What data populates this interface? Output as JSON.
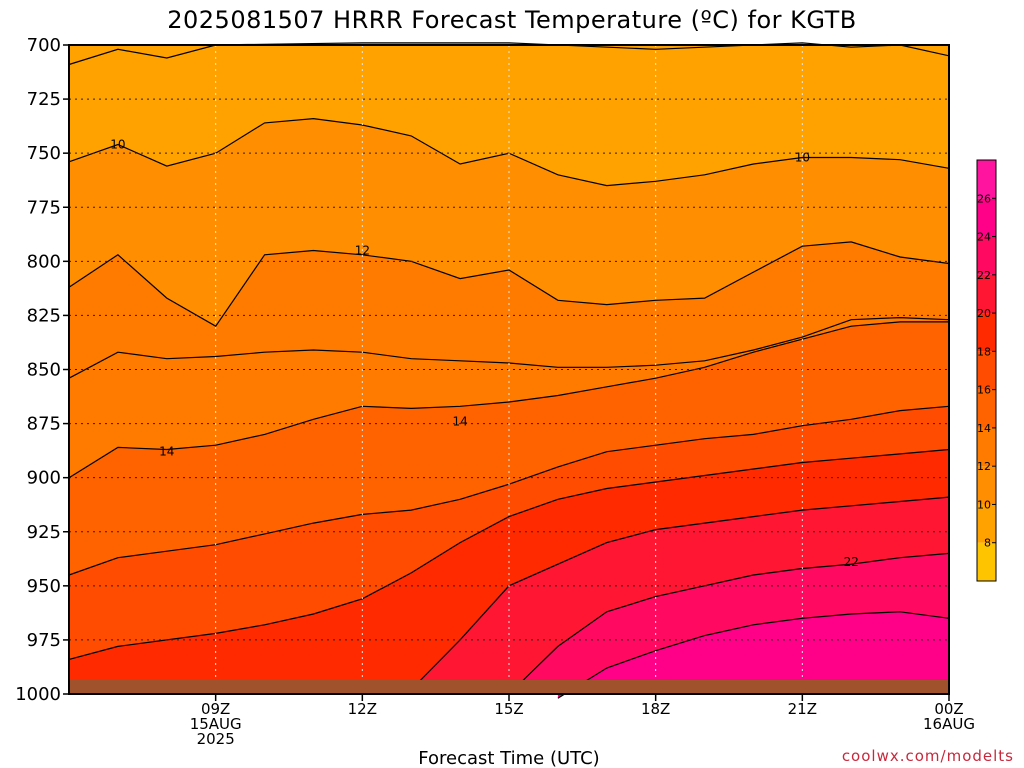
{
  "chart_data": {
    "type": "contour",
    "title": "2025081507 HRRR Forecast Temperature (ºC) for KGTB",
    "xlabel": "Forecast Time (UTC)",
    "y_axis": {
      "ticks": [
        "700",
        "725",
        "750",
        "775",
        "800",
        "825",
        "850",
        "875",
        "900",
        "925",
        "950",
        "975",
        "1000"
      ],
      "range": [
        700,
        1000
      ],
      "inverted": true
    },
    "x_axis": {
      "range_hours": [
        6,
        24
      ],
      "ticks": [
        {
          "hour": 9,
          "lines": [
            "09Z",
            "15AUG",
            "2025"
          ]
        },
        {
          "hour": 12,
          "lines": [
            "12Z"
          ]
        },
        {
          "hour": 15,
          "lines": [
            "15Z"
          ]
        },
        {
          "hour": 18,
          "lines": [
            "18Z"
          ]
        },
        {
          "hour": 21,
          "lines": [
            "21Z"
          ]
        },
        {
          "hour": 24,
          "lines": [
            "00Z",
            "16AUG"
          ]
        }
      ]
    },
    "colorbar": {
      "bins": [
        {
          "from": 6,
          "to": 8,
          "color": "#ffc400"
        },
        {
          "from": 8,
          "to": 10,
          "color": "#ffa200"
        },
        {
          "from": 10,
          "to": 12,
          "color": "#ff8f00"
        },
        {
          "from": 12,
          "to": 14,
          "color": "#ff7b00"
        },
        {
          "from": 14,
          "to": 16,
          "color": "#ff6300"
        },
        {
          "from": 16,
          "to": 18,
          "color": "#ff4c00"
        },
        {
          "from": 18,
          "to": 20,
          "color": "#ff2a00"
        },
        {
          "from": 20,
          "to": 22,
          "color": "#ff1632"
        },
        {
          "from": 22,
          "to": 24,
          "color": "#ff0a60"
        },
        {
          "from": 24,
          "to": 26,
          "color": "#ff0088"
        },
        {
          "from": 26,
          "to": 28,
          "color": "#ff14a0"
        }
      ],
      "tick_labels": [
        "8",
        "10",
        "12",
        "14",
        "16",
        "18",
        "20",
        "22",
        "24",
        "26"
      ]
    },
    "contour_labels": [
      {
        "text": "10",
        "hour": 7.0,
        "pressure": 746
      },
      {
        "text": "10",
        "hour": 21.0,
        "pressure": 752
      },
      {
        "text": "12",
        "hour": 12.0,
        "pressure": 795
      },
      {
        "text": "14",
        "hour": 14.0,
        "pressure": 874
      },
      {
        "text": "14",
        "hour": 8.0,
        "pressure": 888
      },
      {
        "text": "22",
        "hour": 22.0,
        "pressure": 939
      }
    ],
    "isotherms": [
      {
        "value": 8,
        "points": [
          [
            6,
            709
          ],
          [
            7,
            702
          ],
          [
            8,
            706
          ],
          [
            9,
            700
          ],
          [
            12,
            699
          ],
          [
            15,
            699
          ],
          [
            18,
            702
          ],
          [
            21,
            699
          ],
          [
            22,
            701
          ],
          [
            23,
            700
          ],
          [
            24,
            705
          ],
          [
            24,
            708
          ]
        ]
      },
      {
        "value": 10,
        "points": [
          [
            6,
            754
          ],
          [
            7,
            746
          ],
          [
            8,
            756
          ],
          [
            9,
            750
          ],
          [
            10,
            736
          ],
          [
            11,
            734
          ],
          [
            12,
            737
          ],
          [
            13,
            742
          ],
          [
            14,
            755
          ],
          [
            15,
            750
          ],
          [
            16,
            760
          ],
          [
            17,
            765
          ],
          [
            18,
            763
          ],
          [
            19,
            760
          ],
          [
            20,
            755
          ],
          [
            21,
            752
          ],
          [
            22,
            752
          ],
          [
            23,
            753
          ],
          [
            24,
            757
          ]
        ]
      },
      {
        "value": 12,
        "points": [
          [
            6,
            812
          ],
          [
            7,
            797
          ],
          [
            8,
            817
          ],
          [
            9,
            830
          ],
          [
            10,
            797
          ],
          [
            11,
            795
          ],
          [
            12,
            797
          ],
          [
            13,
            800
          ],
          [
            14,
            808
          ],
          [
            15,
            804
          ],
          [
            16,
            818
          ],
          [
            17,
            820
          ],
          [
            18,
            818
          ],
          [
            19,
            817
          ],
          [
            20,
            805
          ],
          [
            21,
            793
          ],
          [
            22,
            791
          ],
          [
            23,
            798
          ],
          [
            24,
            801
          ]
        ]
      },
      {
        "value": 13,
        "points": [
          [
            6,
            854
          ],
          [
            7,
            842
          ],
          [
            8,
            845
          ],
          [
            9,
            844
          ],
          [
            10,
            842
          ],
          [
            11,
            841
          ],
          [
            12,
            842
          ],
          [
            13,
            845
          ],
          [
            14,
            846
          ],
          [
            15,
            847
          ],
          [
            16,
            849
          ],
          [
            17,
            849
          ],
          [
            18,
            848
          ],
          [
            19,
            846
          ],
          [
            20,
            841
          ],
          [
            21,
            835
          ],
          [
            22,
            827
          ],
          [
            23,
            826
          ],
          [
            24,
            827
          ]
        ]
      },
      {
        "value": 14,
        "points": [
          [
            6,
            900
          ],
          [
            7,
            886
          ],
          [
            8,
            887
          ],
          [
            9,
            885
          ],
          [
            10,
            880
          ],
          [
            11,
            873
          ],
          [
            12,
            867
          ],
          [
            13,
            868
          ],
          [
            14,
            867
          ],
          [
            15,
            865
          ],
          [
            16,
            862
          ],
          [
            17,
            858
          ],
          [
            18,
            854
          ],
          [
            19,
            849
          ],
          [
            20,
            842
          ],
          [
            21,
            836
          ],
          [
            22,
            830
          ],
          [
            23,
            828
          ],
          [
            24,
            828
          ]
        ]
      },
      {
        "value": 16,
        "points": [
          [
            6,
            945
          ],
          [
            7,
            937
          ],
          [
            8,
            934
          ],
          [
            9,
            931
          ],
          [
            10,
            926
          ],
          [
            11,
            921
          ],
          [
            12,
            917
          ],
          [
            13,
            915
          ],
          [
            14,
            910
          ],
          [
            15,
            903
          ],
          [
            16,
            895
          ],
          [
            17,
            888
          ],
          [
            18,
            885
          ],
          [
            19,
            882
          ],
          [
            20,
            880
          ],
          [
            21,
            876
          ],
          [
            22,
            873
          ],
          [
            23,
            869
          ],
          [
            24,
            867
          ]
        ]
      },
      {
        "value": 18,
        "points": [
          [
            6,
            984
          ],
          [
            7,
            978
          ],
          [
            8,
            975
          ],
          [
            9,
            972
          ],
          [
            10,
            968
          ],
          [
            11,
            963
          ],
          [
            12,
            956
          ],
          [
            13,
            944
          ],
          [
            14,
            930
          ],
          [
            15,
            918
          ],
          [
            16,
            910
          ],
          [
            17,
            905
          ],
          [
            18,
            902
          ],
          [
            19,
            899
          ],
          [
            20,
            896
          ],
          [
            21,
            893
          ],
          [
            22,
            891
          ],
          [
            23,
            889
          ],
          [
            24,
            887
          ]
        ]
      },
      {
        "value": 20,
        "points": [
          [
            13,
            998
          ],
          [
            14,
            975
          ],
          [
            15,
            950
          ],
          [
            16,
            940
          ],
          [
            17,
            930
          ],
          [
            18,
            924
          ],
          [
            19,
            921
          ],
          [
            20,
            918
          ],
          [
            21,
            915
          ],
          [
            22,
            913
          ],
          [
            23,
            911
          ],
          [
            24,
            909
          ]
        ]
      },
      {
        "value": 22,
        "points": [
          [
            15,
            1000
          ],
          [
            16,
            978
          ],
          [
            17,
            962
          ],
          [
            18,
            955
          ],
          [
            19,
            950
          ],
          [
            20,
            945
          ],
          [
            21,
            942
          ],
          [
            22,
            940
          ],
          [
            23,
            937
          ],
          [
            24,
            935
          ]
        ]
      },
      {
        "value": 24,
        "points": [
          [
            16,
            1002
          ],
          [
            17,
            988
          ],
          [
            18,
            980
          ],
          [
            19,
            973
          ],
          [
            20,
            968
          ],
          [
            21,
            965
          ],
          [
            22,
            963
          ],
          [
            23,
            962
          ],
          [
            24,
            965
          ]
        ]
      }
    ]
  },
  "credit": "coolwx.com/modelts"
}
